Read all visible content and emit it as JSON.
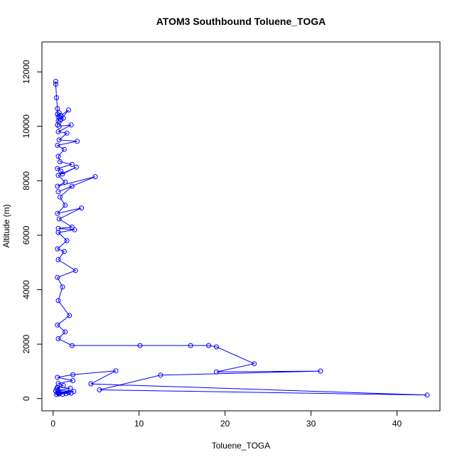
{
  "chart_data": {
    "type": "scatter",
    "title": "ATOM3 Southbound Toluene_TOGA",
    "xlabel": "Toluene_TOGA",
    "ylabel": "Altitude (m)",
    "xlim": [
      -1.3,
      45.0
    ],
    "ylim": [
      -450,
      13100
    ],
    "xticks": [
      0,
      10,
      20,
      30,
      40
    ],
    "yticks": [
      0,
      2000,
      4000,
      6000,
      8000,
      10000,
      12000
    ],
    "grid": false,
    "legend": "none",
    "marker": "open-circle",
    "connected": true,
    "series_color": "#0000ff",
    "series": [
      {
        "x": [
          0.3,
          0.3,
          0.4,
          0.5,
          0.5,
          0.6,
          0.5,
          0.6,
          0.7,
          0.9,
          1.8,
          0.9,
          1.2,
          0.7,
          2.1,
          0.6,
          1.6,
          0.7,
          2.8,
          0.5,
          1.3,
          0.6,
          0.8,
          2.2,
          0.5,
          0.9,
          1.1,
          2.7,
          0.6,
          1.4,
          0.5,
          4.9,
          0.6,
          2.2,
          0.8,
          1.4,
          0.5,
          3.3,
          0.7,
          2.2,
          0.6,
          2.5,
          0.6,
          1.6,
          0.5,
          1.3,
          0.6,
          2.6,
          0.5,
          1.1,
          0.6,
          1.9,
          0.5,
          1.4,
          0.6,
          2.2,
          10.1,
          16.0,
          18.1,
          19.0,
          23.4,
          19.0,
          31.1,
          12.5,
          5.4,
          43.5,
          4.4,
          7.3,
          2.3,
          0.5,
          2.3,
          0.6,
          1.2,
          0.5,
          2.0,
          0.6,
          2.4,
          0.7,
          1.8,
          0.5,
          2.1,
          0.6,
          1.5,
          0.7,
          1.1,
          0.4,
          0.6,
          0.3,
          0.4,
          0.5
        ],
        "y": [
          11650,
          11550,
          11050,
          10650,
          10450,
          10200,
          10050,
          10350,
          10500,
          10250,
          10600,
          10400,
          10300,
          10000,
          10050,
          9800,
          9750,
          9500,
          9450,
          9300,
          9150,
          8900,
          8700,
          8600,
          8450,
          8350,
          8250,
          8500,
          8200,
          7950,
          7800,
          8150,
          7600,
          7800,
          7400,
          7100,
          6800,
          7000,
          6600,
          6300,
          6250,
          6200,
          6100,
          5800,
          5500,
          5400,
          5100,
          4700,
          4450,
          4100,
          3600,
          3050,
          2700,
          2450,
          2200,
          1950,
          1950,
          1950,
          1950,
          1900,
          1280,
          980,
          1010,
          860,
          320,
          130,
          540,
          1020,
          880,
          780,
          660,
          560,
          480,
          420,
          380,
          300,
          260,
          240,
          220,
          210,
          200,
          190,
          180,
          170,
          160,
          150,
          200,
          280,
          350,
          400
        ]
      }
    ]
  }
}
